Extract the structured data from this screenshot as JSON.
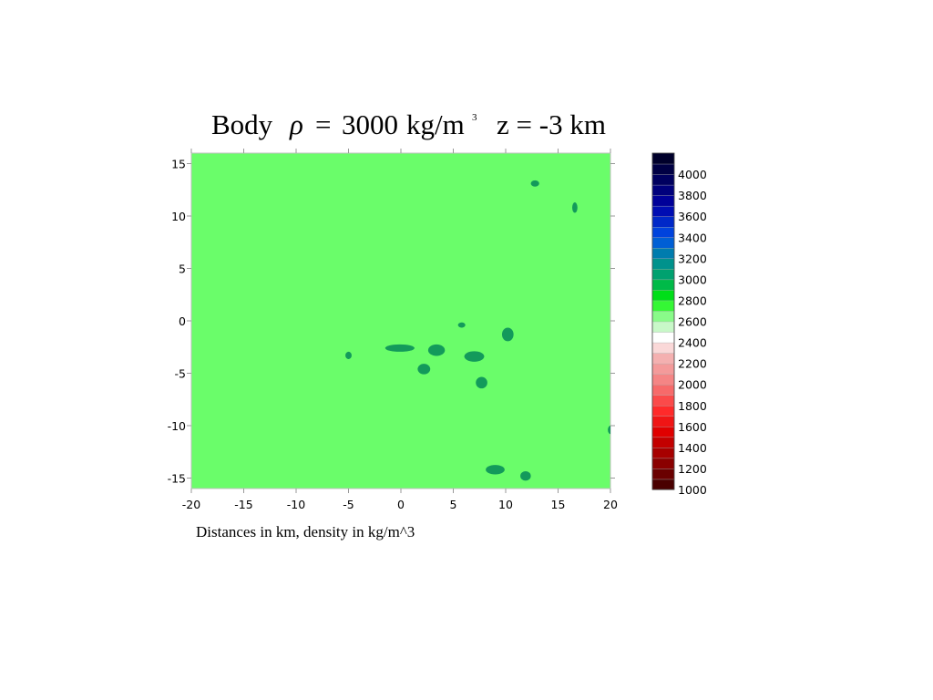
{
  "chart_data": {
    "type": "heatmap",
    "title": {
      "word": "Body",
      "symbol": "ρ",
      "equals": "=",
      "value": "3000",
      "unit": "kg/m",
      "exponent": "3",
      "depth": "z = -3 km"
    },
    "caption": "Distances in km, density in kg/m^3",
    "xlim": [
      -20,
      20
    ],
    "ylim": [
      -16,
      16
    ],
    "x_ticks": [
      -20,
      -15,
      -10,
      -5,
      0,
      5,
      10,
      15,
      20
    ],
    "x_tick_labels": [
      "-20",
      "-15",
      "-10",
      "-5",
      "0",
      "5",
      "10",
      "15",
      "20"
    ],
    "y_ticks": [
      15,
      10,
      5,
      0,
      -5,
      -10,
      -15
    ],
    "y_tick_labels": [
      "15",
      "10",
      "5",
      "0",
      "-5",
      "-10",
      "-15"
    ],
    "background_density": 2700,
    "background_color": "#6afd6a",
    "anomaly_density": 3000,
    "anomaly_color": "#139a5b",
    "anomalies": [
      {
        "x": 12.8,
        "y": 13.1,
        "rx": 0.4,
        "ry": 0.3
      },
      {
        "x": 16.6,
        "y": 10.8,
        "rx": 0.25,
        "ry": 0.5
      },
      {
        "x": 5.8,
        "y": -0.4,
        "rx": 0.35,
        "ry": 0.25
      },
      {
        "x": 10.2,
        "y": -1.3,
        "rx": 0.55,
        "ry": 0.65
      },
      {
        "x": -0.1,
        "y": -2.6,
        "rx": 1.4,
        "ry": 0.35
      },
      {
        "x": 3.4,
        "y": -2.8,
        "rx": 0.8,
        "ry": 0.55
      },
      {
        "x": 7.0,
        "y": -3.4,
        "rx": 0.95,
        "ry": 0.5
      },
      {
        "x": -5.0,
        "y": -3.3,
        "rx": 0.3,
        "ry": 0.35
      },
      {
        "x": 2.2,
        "y": -4.6,
        "rx": 0.6,
        "ry": 0.5
      },
      {
        "x": 7.7,
        "y": -5.9,
        "rx": 0.55,
        "ry": 0.55
      },
      {
        "x": 20.0,
        "y": -10.4,
        "rx": 0.25,
        "ry": 0.4
      },
      {
        "x": 9.0,
        "y": -14.2,
        "rx": 0.9,
        "ry": 0.45
      },
      {
        "x": 11.9,
        "y": -14.8,
        "rx": 0.5,
        "ry": 0.45
      }
    ],
    "colorbar": {
      "min": 1000,
      "max": 4200,
      "step": 100,
      "labels": [
        "4000",
        "3800",
        "3600",
        "3400",
        "3200",
        "3000",
        "2800",
        "2600",
        "2400",
        "2200",
        "2000",
        "1800",
        "1600",
        "1400",
        "1200",
        "1000"
      ],
      "label_values": [
        4000,
        3800,
        3600,
        3400,
        3200,
        3000,
        2800,
        2600,
        2400,
        2200,
        2000,
        1800,
        1600,
        1400,
        1200,
        1000
      ],
      "stops": [
        {
          "v": 1000,
          "c": "#3a0000"
        },
        {
          "v": 1250,
          "c": "#8a0000"
        },
        {
          "v": 1550,
          "c": "#e00000"
        },
        {
          "v": 1750,
          "c": "#ff2a2a"
        },
        {
          "v": 2000,
          "c": "#f57a7a"
        },
        {
          "v": 2250,
          "c": "#f4b0b0"
        },
        {
          "v": 2450,
          "c": "#ffffff"
        },
        {
          "v": 2550,
          "c": "#c8f8c8"
        },
        {
          "v": 2700,
          "c": "#6afd6a"
        },
        {
          "v": 2800,
          "c": "#00f000"
        },
        {
          "v": 3000,
          "c": "#00a860"
        },
        {
          "v": 3200,
          "c": "#008a9a"
        },
        {
          "v": 3400,
          "c": "#0050e8"
        },
        {
          "v": 3700,
          "c": "#0000a8"
        },
        {
          "v": 4000,
          "c": "#000050"
        },
        {
          "v": 4200,
          "c": "#00001e"
        }
      ]
    }
  }
}
